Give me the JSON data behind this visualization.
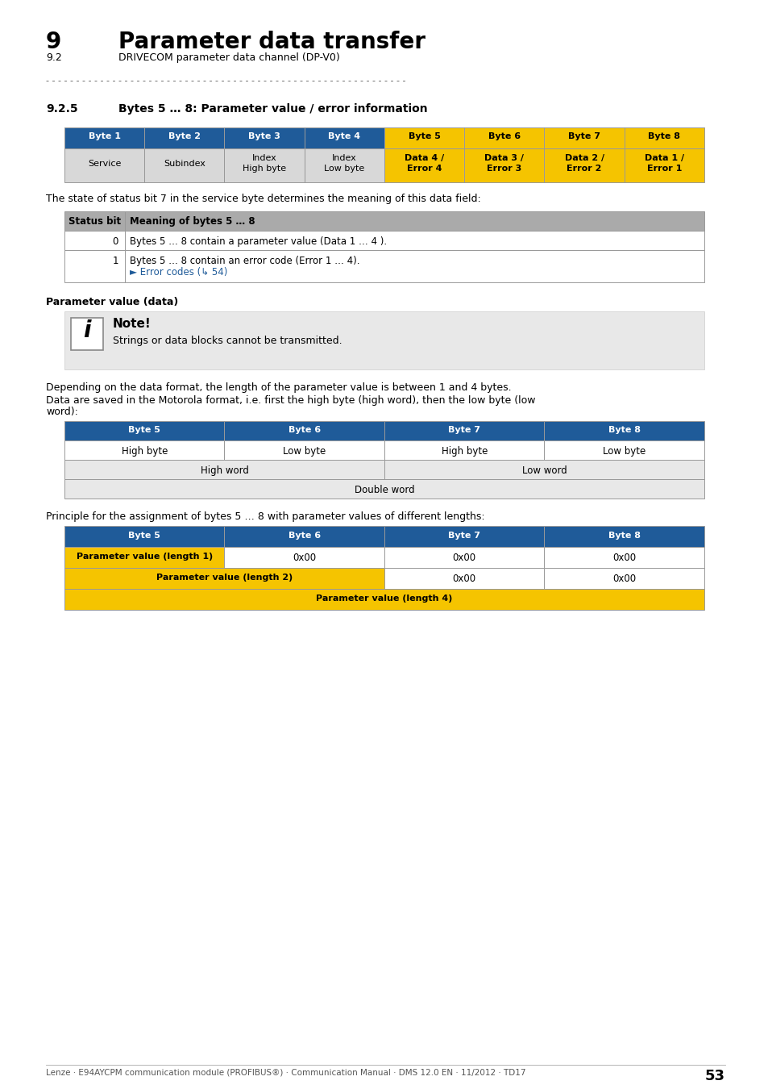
{
  "page_title": "9",
  "page_title_text": "Parameter data transfer",
  "page_subtitle_num": "9.2",
  "page_subtitle_text": "DRIVECOM parameter data channel (DP-V0)",
  "section_num": "9.2.5",
  "section_title": "Bytes 5 … 8: Parameter value / error information",
  "table1_headers": [
    "Byte 1",
    "Byte 2",
    "Byte 3",
    "Byte 4",
    "Byte 5",
    "Byte 6",
    "Byte 7",
    "Byte 8"
  ],
  "table1_row": [
    "Service",
    "Subindex",
    "Index\nHigh byte",
    "Index\nLow byte",
    "Data 4 /\nError 4",
    "Data 3 /\nError 3",
    "Data 2 /\nError 2",
    "Data 1 /\nError 1"
  ],
  "table1_header_bg": "#1F5B99",
  "table1_header_yellow_bg": "#F5C400",
  "table1_row_bg": "#D8D8D8",
  "table1_header_cols_yellow": [
    4,
    5,
    6,
    7
  ],
  "status_text": "The state of status bit 7 in the service byte determines the meaning of this data field:",
  "table2_headers": [
    "Status bit",
    "Meaning of bytes 5 … 8"
  ],
  "table2_header_bg": "#AAAAAA",
  "table2_rows": [
    [
      "0",
      "Bytes 5 … 8 contain a parameter value (Data 1 … 4 )."
    ],
    [
      "1",
      "Bytes 5 … 8 contain an error code (Error 1 … 4).\n► Error codes (↳ 54)"
    ]
  ],
  "param_value_label": "Parameter value (data)",
  "note_text": "Note!",
  "note_body": "Strings or data blocks cannot be transmitted.",
  "note_bg": "#E8E8E8",
  "para1": "Depending on the data format, the length of the parameter value is between 1 and 4 bytes.",
  "para2_line1": "Data are saved in the Motorola format, i.e. first the high byte (high word), then the low byte (low",
  "para2_line2": "word):",
  "table3_headers": [
    "Byte 5",
    "Byte 6",
    "Byte 7",
    "Byte 8"
  ],
  "table3_row1": [
    "High byte",
    "Low byte",
    "High byte",
    "Low byte"
  ],
  "table3_row2_left": "High word",
  "table3_row2_right": "Low word",
  "table3_row3": "Double word",
  "para3": "Principle for the assignment of bytes 5 … 8 with parameter values of different lengths:",
  "table4_headers": [
    "Byte 5",
    "Byte 6",
    "Byte 7",
    "Byte 8"
  ],
  "table4_row1_col1": "Parameter value (length 1)",
  "table4_row1_others": [
    "0x00",
    "0x00",
    "0x00"
  ],
  "table4_row2_span": "Parameter value (length 2)",
  "table4_row2_others": [
    "0x00",
    "0x00"
  ],
  "table4_row3_span": "Parameter value (length 4)",
  "footer_text": "Lenze · E94AYCPM communication module (PROFIBUS®) · Communication Manual · DMS 12.0 EN · 11/2012 · TD17",
  "footer_page": "53",
  "bg_color": "#FFFFFF",
  "blue_color": "#1F5B99",
  "yellow_color": "#F5C400",
  "light_gray": "#E8E8E8",
  "white": "#FFFFFF",
  "dash_char": "- - - - - - - - - - - - - - - - - - - - - - - - - - - - - - - - - - - - - - - - - - - - - - - - - - - - - - - - - - - -"
}
